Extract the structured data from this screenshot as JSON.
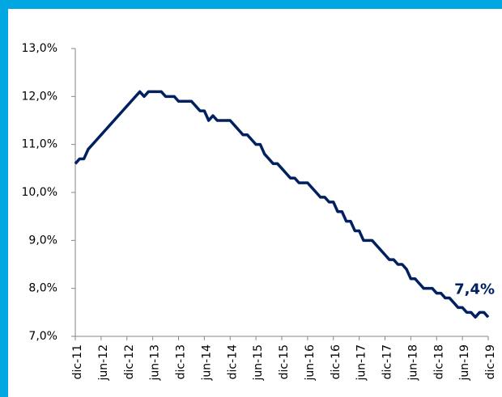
{
  "chart_data": {
    "type": "line",
    "categories": [
      "dic-11",
      null,
      null,
      null,
      null,
      null,
      "jun-12",
      null,
      null,
      null,
      null,
      null,
      "dic-12",
      null,
      null,
      null,
      null,
      null,
      "jun-13",
      null,
      null,
      null,
      null,
      null,
      "dic-13",
      null,
      null,
      null,
      null,
      null,
      "jun-14",
      null,
      null,
      null,
      null,
      null,
      "dic-14",
      null,
      null,
      null,
      null,
      null,
      "jun-15",
      null,
      null,
      null,
      null,
      null,
      "dic-15",
      null,
      null,
      null,
      null,
      null,
      "jun-16",
      null,
      null,
      null,
      null,
      null,
      "dic-16",
      null,
      null,
      null,
      null,
      null,
      "jun-17",
      null,
      null,
      null,
      null,
      null,
      "dic-17",
      null,
      null,
      null,
      null,
      null,
      "jun-18",
      null,
      null,
      null,
      null,
      null,
      "dic-18",
      null,
      null,
      null,
      null,
      null,
      "jun-19",
      null,
      null,
      null,
      null,
      null,
      "dic-19"
    ],
    "series": [
      {
        "color": "#002060",
        "values": [
          10.6,
          10.7,
          10.7,
          10.9,
          11.0,
          11.1,
          11.2,
          11.3,
          11.4,
          11.5,
          11.6,
          11.7,
          11.8,
          11.9,
          12.0,
          12.1,
          12.0,
          12.1,
          12.1,
          12.1,
          12.1,
          12.0,
          12.0,
          12.0,
          11.9,
          11.9,
          11.9,
          11.9,
          11.8,
          11.7,
          11.7,
          11.5,
          11.6,
          11.5,
          11.5,
          11.5,
          11.5,
          11.4,
          11.3,
          11.2,
          11.2,
          11.1,
          11.0,
          11.0,
          10.8,
          10.7,
          10.6,
          10.6,
          10.5,
          10.4,
          10.3,
          10.3,
          10.2,
          10.2,
          10.2,
          10.1,
          10.0,
          9.9,
          9.9,
          9.8,
          9.8,
          9.6,
          9.6,
          9.4,
          9.4,
          9.2,
          9.2,
          9.0,
          9.0,
          9.0,
          8.9,
          8.8,
          8.7,
          8.6,
          8.6,
          8.5,
          8.5,
          8.4,
          8.2,
          8.2,
          8.1,
          8.0,
          8.0,
          8.0,
          7.9,
          7.9,
          7.8,
          7.8,
          7.7,
          7.6,
          7.6,
          7.5,
          7.5,
          7.4,
          7.5,
          7.5,
          7.4
        ],
        "value_labels": [
          null,
          null,
          null,
          null,
          null,
          null,
          null,
          null,
          null,
          null,
          null,
          null,
          null,
          null,
          null,
          null,
          null,
          null,
          null,
          null,
          null,
          null,
          null,
          null,
          null,
          null,
          null,
          null,
          null,
          null,
          null,
          null,
          null,
          null,
          null,
          null,
          null,
          null,
          null,
          null,
          null,
          null,
          null,
          null,
          null,
          null,
          null,
          null,
          null,
          null,
          null,
          null,
          null,
          null,
          null,
          null,
          null,
          null,
          null,
          null,
          null,
          null,
          null,
          null,
          null,
          null,
          null,
          null,
          null,
          null,
          null,
          null,
          null,
          null,
          null,
          null,
          null,
          null,
          null,
          null,
          null,
          null,
          null,
          null,
          null,
          null,
          null,
          null,
          null,
          null,
          null,
          null,
          null,
          null,
          null,
          null,
          "7,4%"
        ]
      }
    ],
    "ylim": [
      7,
      13
    ],
    "yticks": [
      {
        "value": 7,
        "label": "7,0%"
      },
      {
        "value": 8,
        "label": "8,0%"
      },
      {
        "value": 9,
        "label": "9,0%"
      },
      {
        "value": 10,
        "label": "10,0%"
      },
      {
        "value": 11,
        "label": "11,0%"
      },
      {
        "value": 12,
        "label": "12,0%"
      },
      {
        "value": 13,
        "label": "13,0%"
      }
    ],
    "grid": false
  }
}
